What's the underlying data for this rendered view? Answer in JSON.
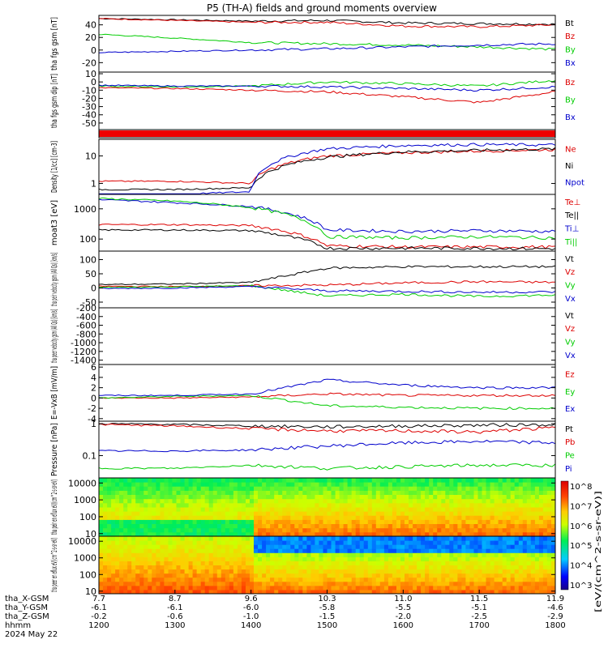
{
  "title": "P5 (TH-A) fields and ground moments overview",
  "time_axis": {
    "range": [
      1200,
      1800
    ],
    "row_labels": [
      "tha_X-GSM",
      "tha_Y-GSM",
      "tha_Z-GSM",
      "hhmm",
      "2024 May 22"
    ],
    "ticks": [
      {
        "x": "7.7",
        "y": "-6.1",
        "z": "-0.2",
        "t": "1200"
      },
      {
        "x": "8.7",
        "y": "-6.1",
        "z": "-0.6",
        "t": "1300"
      },
      {
        "x": "9.6",
        "y": "-6.0",
        "z": "-1.0",
        "t": "1400"
      },
      {
        "x": "10.3",
        "y": "-5.8",
        "z": "-1.5",
        "t": "1500"
      },
      {
        "x": "11.0",
        "y": "-5.5",
        "z": "-2.0",
        "t": "1600"
      },
      {
        "x": "11.5",
        "y": "-5.1",
        "z": "-2.5",
        "t": "1700"
      },
      {
        "x": "11.9",
        "y": "-4.6",
        "z": "-2.9",
        "t": "1800"
      }
    ]
  },
  "colorbar": {
    "label": "[eV/(cm^2-s-sr-eV)]",
    "ticks": [
      "10^8",
      "10^7",
      "10^6",
      "10^5",
      "10^4",
      "10^3"
    ]
  },
  "chart_data": [
    {
      "type": "line",
      "ylabel": "tha fgs gsm [nT]",
      "ylim": [
        -35,
        55
      ],
      "log": false,
      "yticks": [
        40,
        20,
        0,
        -20
      ],
      "series": [
        {
          "name": "Bt",
          "color": "#000000",
          "values": [
            50,
            48,
            46,
            47,
            43,
            42,
            41
          ]
        },
        {
          "name": "Bz",
          "color": "#dd0000",
          "values": [
            50,
            47,
            44,
            44,
            38,
            37,
            40
          ]
        },
        {
          "name": "By",
          "color": "#00cc00",
          "values": [
            25,
            19,
            12,
            10,
            8,
            5,
            1
          ]
        },
        {
          "name": "Bx",
          "color": "#0000cc",
          "values": [
            -4,
            -2,
            0,
            2,
            5,
            8,
            10
          ]
        }
      ]
    },
    {
      "type": "line",
      "ylabel": "tha fgs gsm dip [nT]",
      "ylim": [
        -58,
        12
      ],
      "log": false,
      "yticks": [
        10,
        0,
        -10,
        -20,
        -30,
        -40,
        -50
      ],
      "series": [
        {
          "name": "Bz",
          "color": "#dd0000",
          "values": [
            -7,
            -8,
            -10,
            -12,
            -18,
            -25,
            -12
          ]
        },
        {
          "name": "By",
          "color": "#00cc00",
          "values": [
            -5,
            -6,
            -5,
            0,
            -2,
            -5,
            2
          ]
        },
        {
          "name": "Bx",
          "color": "#0000cc",
          "values": [
            -4,
            -5,
            -5,
            -6,
            -8,
            -10,
            -6
          ]
        }
      ]
    },
    {
      "type": "line",
      "ylabel": "Density [1/cc] [cm-3]",
      "ylim": [
        0.4,
        40
      ],
      "log": true,
      "yticks": [
        10,
        1
      ],
      "series": [
        {
          "name": "Ne",
          "color": "#dd0000",
          "values": [
            1.2,
            1.2,
            1.0,
            10,
            13,
            15,
            17
          ]
        },
        {
          "name": "Ni",
          "color": "#000000",
          "values": [
            0.6,
            0.6,
            0.7,
            9,
            14,
            16,
            18
          ]
        },
        {
          "name": "Npot",
          "color": "#0000cc",
          "values": [
            0.4,
            0.4,
            0.5,
            18,
            24,
            26,
            25
          ]
        }
      ]
    },
    {
      "type": "line",
      "ylabel": "moat3 [eV]",
      "ylim": [
        40,
        3000
      ],
      "log": true,
      "yticks": [
        1000,
        100
      ],
      "series": [
        {
          "name": "Te⊥",
          "color": "#dd0000",
          "values": [
            300,
            300,
            280,
            60,
            55,
            55,
            55
          ]
        },
        {
          "name": "Te||",
          "color": "#000000",
          "values": [
            200,
            200,
            190,
            50,
            50,
            50,
            48
          ]
        },
        {
          "name": "Ti⊥",
          "color": "#0000cc",
          "values": [
            2000,
            1600,
            1200,
            200,
            180,
            190,
            180
          ]
        },
        {
          "name": "Ti||",
          "color": "#00cc00",
          "values": [
            2200,
            1800,
            1100,
            120,
            110,
            120,
            110
          ]
        }
      ]
    },
    {
      "type": "line",
      "ylabel": "tha peir velocity gsm (All Qs) [km/s]",
      "ylim": [
        -70,
        130
      ],
      "log": false,
      "yticks": [
        100,
        50,
        0,
        -50
      ],
      "series": [
        {
          "name": "Vt",
          "color": "#000000",
          "values": [
            12,
            14,
            20,
            70,
            75,
            75,
            75
          ]
        },
        {
          "name": "Vz",
          "color": "#dd0000",
          "values": [
            6,
            5,
            8,
            10,
            18,
            22,
            20
          ]
        },
        {
          "name": "Vy",
          "color": "#00cc00",
          "values": [
            2,
            4,
            8,
            -28,
            -22,
            -30,
            -25
          ]
        },
        {
          "name": "Vx",
          "color": "#0000cc",
          "values": [
            -2,
            0,
            5,
            -10,
            -12,
            -15,
            -14
          ]
        }
      ]
    },
    {
      "type": "line",
      "ylabel": "tha peer velocity gsm (All Qs) [km/s]",
      "ylim": [
        -1500,
        -200
      ],
      "log": false,
      "yticks": [
        -200,
        -400,
        -600,
        -800,
        -1000,
        -1200,
        -1400
      ],
      "series": [
        {
          "name": "Vt",
          "color": "#000000",
          "values": []
        },
        {
          "name": "Vz",
          "color": "#dd0000",
          "values": []
        },
        {
          "name": "Vy",
          "color": "#00cc00",
          "values": []
        },
        {
          "name": "Vx",
          "color": "#0000cc",
          "values": []
        }
      ]
    },
    {
      "type": "line",
      "ylabel": "E=-VxB [mV/m]",
      "ylim": [
        -4.5,
        6.5
      ],
      "log": false,
      "yticks": [
        6,
        4,
        2,
        0,
        -2,
        -4
      ],
      "series": [
        {
          "name": "Ez",
          "color": "#dd0000",
          "values": [
            0,
            0,
            0.2,
            0.8,
            0.5,
            0.5,
            0.5
          ]
        },
        {
          "name": "Ey",
          "color": "#00cc00",
          "values": [
            0,
            0.3,
            0.5,
            -1.5,
            -1.8,
            -2,
            -2
          ]
        },
        {
          "name": "Ex",
          "color": "#0000cc",
          "values": [
            0.5,
            0.5,
            0.8,
            3.5,
            2.5,
            2,
            2
          ]
        }
      ]
    },
    {
      "type": "line",
      "ylabel": "Pressure [nPa]",
      "ylim": [
        0.02,
        1.2
      ],
      "log": true,
      "yticks": [
        1.0,
        0.1
      ],
      "series": [
        {
          "name": "Pt",
          "color": "#000000",
          "values": [
            1.0,
            0.95,
            0.85,
            0.8,
            0.85,
            0.9,
            0.95
          ]
        },
        {
          "name": "Pb",
          "color": "#dd0000",
          "values": [
            0.95,
            0.85,
            0.7,
            0.6,
            0.6,
            0.55,
            0.75
          ]
        },
        {
          "name": "Pe",
          "color": "#00cc00",
          "values": [
            0.04,
            0.04,
            0.05,
            0.04,
            0.045,
            0.05,
            0.05
          ]
        },
        {
          "name": "Pi",
          "color": "#0000cc",
          "values": [
            0.14,
            0.14,
            0.15,
            0.2,
            0.25,
            0.28,
            0.25
          ]
        }
      ]
    },
    {
      "type": "heatmap",
      "ylabel": "tha peir en eflux eV/(cm^2-s-sr-eV)",
      "ylim": [
        7,
        20000
      ],
      "log": true,
      "yticks": [
        10000,
        1000,
        100,
        10
      ],
      "z_transition_time": 1400
    },
    {
      "type": "heatmap",
      "ylabel": "tha peer en eflux eV/(cm^2-s-sr-eV)",
      "ylim": [
        7,
        20000
      ],
      "log": true,
      "yticks": [
        10000,
        1000,
        100,
        10
      ],
      "z_transition_time": 1400
    }
  ]
}
